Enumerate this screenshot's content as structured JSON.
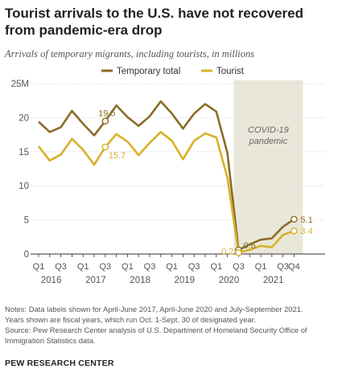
{
  "title": "Tourist arrivals to the U.S. have not recovered from pandemic-era drop",
  "subtitle": "Arrivals of temporary migrants, including tourists, in millions",
  "chart_data": {
    "type": "line",
    "x": [
      "2016 Q1",
      "2016 Q2",
      "2016 Q3",
      "2016 Q4",
      "2017 Q1",
      "2017 Q2",
      "2017 Q3",
      "2017 Q4",
      "2018 Q1",
      "2018 Q2",
      "2018 Q3",
      "2018 Q4",
      "2019 Q1",
      "2019 Q2",
      "2019 Q3",
      "2019 Q4",
      "2020 Q1",
      "2020 Q2",
      "2020 Q3",
      "2020 Q4",
      "2021 Q1",
      "2021 Q2",
      "2021 Q3",
      "2021 Q4"
    ],
    "series": [
      {
        "name": "Temporary total",
        "color": "#8a6d26",
        "values": [
          19.4,
          17.9,
          18.6,
          21.0,
          19.1,
          17.4,
          19.5,
          21.8,
          20.1,
          18.8,
          20.2,
          22.4,
          20.6,
          18.4,
          20.6,
          22.0,
          20.9,
          14.8,
          0.6,
          1.4,
          2.1,
          2.3,
          4.0,
          5.1
        ]
      },
      {
        "name": "Tourist",
        "color": "#d8b12a",
        "values": [
          15.8,
          13.7,
          14.6,
          16.9,
          15.3,
          13.1,
          15.7,
          17.6,
          16.5,
          14.5,
          16.3,
          17.9,
          16.6,
          13.9,
          16.6,
          17.7,
          17.1,
          11.2,
          0.2,
          0.6,
          1.2,
          1.0,
          2.8,
          3.4
        ]
      }
    ],
    "y_ticks": [
      "0",
      "5",
      "10",
      "15",
      "20",
      "25M"
    ],
    "ylim": [
      0,
      25
    ],
    "x_quarter_labels": [
      "Q1",
      "Q3",
      "Q1",
      "Q3",
      "Q1",
      "Q3",
      "Q1",
      "Q3",
      "Q1",
      "Q3",
      "Q1",
      "Q3"
    ],
    "x_year_labels": [
      "2016",
      "2017",
      "2018",
      "2019",
      "2020",
      "2021"
    ],
    "data_labels": [
      {
        "series": 0,
        "index": 6,
        "text": "19.5"
      },
      {
        "series": 1,
        "index": 6,
        "text": "15.7"
      },
      {
        "series": 0,
        "index": 18,
        "text": "0.6"
      },
      {
        "series": 1,
        "index": 18,
        "text": "0.2"
      },
      {
        "series": 0,
        "index": 23,
        "text": "5.1"
      },
      {
        "series": 1,
        "index": 23,
        "text": "3.4"
      }
    ],
    "shaded_region": {
      "label": "COVID-19 pandemic",
      "label_lines": [
        "COVID-19",
        "pandemic"
      ],
      "from_index": 18,
      "to_index": 23
    },
    "legend_position": "top-center",
    "grid": true
  },
  "notes": [
    "Notes: Data labels shown for April-June 2017, April-June 2020 and July-September 2021.",
    "Years shown are fiscal years, which run Oct. 1-Sept. 30 of designated year.",
    "Source: Pew Research Center analysis of U.S. Department of Homeland Security Office of",
    "Immigration Statistics data."
  ],
  "footer": "PEW RESEARCH CENTER"
}
